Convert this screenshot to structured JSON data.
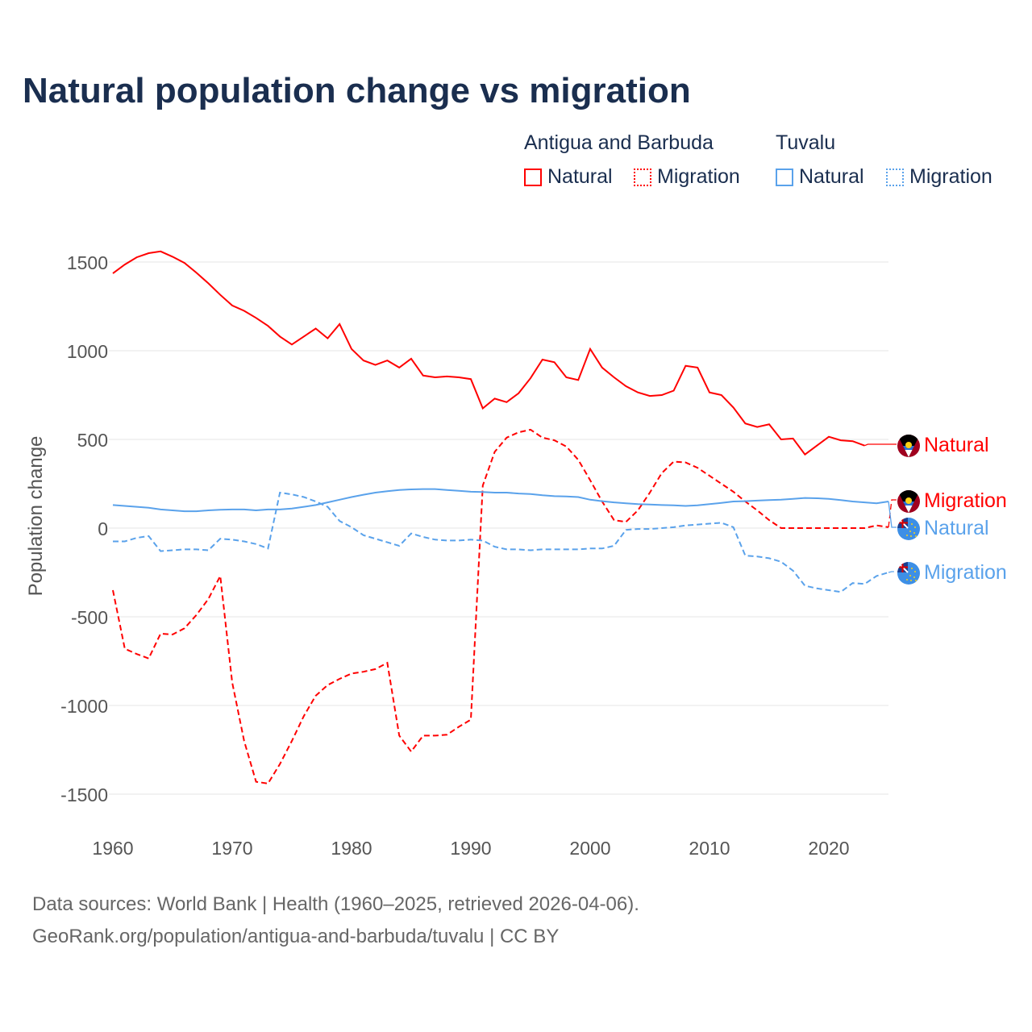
{
  "chart_data": {
    "type": "line",
    "title": "Natural population change vs migration",
    "xlabel": "",
    "ylabel": "Population change",
    "xlim": [
      1960,
      2025
    ],
    "ylim": [
      -1500,
      1500
    ],
    "yticks": [
      1500,
      1000,
      500,
      0,
      -500,
      -1000,
      -1500
    ],
    "ytick_labels": [
      "1500",
      "1000",
      "500",
      "0",
      "-500",
      "-1000",
      "-1500"
    ],
    "xticks": [
      1960,
      1970,
      1980,
      1990,
      2000,
      2010,
      2020
    ],
    "xtick_labels": [
      "1960",
      "1970",
      "1980",
      "1990",
      "2000",
      "2010",
      "2020"
    ],
    "grid": true,
    "legend_groups": [
      {
        "name": "Antigua and Barbuda",
        "items": [
          "Natural",
          "Migration"
        ]
      },
      {
        "name": "Tuvalu",
        "items": [
          "Natural",
          "Migration"
        ]
      }
    ],
    "x_start": 1960,
    "series": [
      {
        "name": "Natural",
        "country": "Antigua and Barbuda",
        "color": "#ff0000",
        "dash": false,
        "end_label": "Natural",
        "flag": "antigua-flag-icon",
        "values": [
          1436,
          1486,
          1527,
          1550,
          1560,
          1530,
          1495,
          1440,
          1380,
          1315,
          1255,
          1225,
          1185,
          1140,
          1080,
          1035,
          1080,
          1125,
          1070,
          1150,
          1010,
          945,
          920,
          945,
          905,
          955,
          860,
          850,
          855,
          850,
          840,
          675,
          730,
          710,
          760,
          845,
          950,
          935,
          850,
          835,
          1010,
          905,
          850,
          800,
          765,
          745,
          750,
          775,
          915,
          905,
          765,
          750,
          680,
          590,
          570,
          585,
          500,
          505,
          415,
          465,
          515,
          495,
          490,
          465,
          null,
          null
        ]
      },
      {
        "name": "Migration",
        "country": "Antigua and Barbuda",
        "color": "#ff0000",
        "dash": true,
        "end_label": "Migration",
        "flag": "antigua-flag-icon",
        "values": [
          -350,
          -680,
          -710,
          -735,
          -595,
          -600,
          -565,
          -490,
          -400,
          -270,
          -870,
          -1200,
          -1430,
          -1440,
          -1330,
          -1200,
          -1060,
          -945,
          -885,
          -850,
          -820,
          -810,
          -795,
          -760,
          -1170,
          -1260,
          -1170,
          -1170,
          -1165,
          -1120,
          -1080,
          240,
          430,
          510,
          540,
          555,
          510,
          495,
          460,
          385,
          270,
          150,
          45,
          35,
          100,
          200,
          310,
          375,
          370,
          340,
          295,
          250,
          205,
          150,
          100,
          45,
          0,
          0,
          0,
          0,
          0,
          0,
          0,
          0,
          15,
          5
        ]
      },
      {
        "name": "Natural",
        "country": "Tuvalu",
        "color": "#5aa2eb",
        "dash": false,
        "end_label": "Natural",
        "flag": "tuvalu-flag-icon",
        "values": [
          130,
          125,
          120,
          115,
          105,
          100,
          95,
          95,
          100,
          103,
          105,
          105,
          100,
          105,
          105,
          110,
          120,
          130,
          145,
          160,
          175,
          188,
          200,
          208,
          215,
          218,
          220,
          220,
          215,
          210,
          205,
          203,
          200,
          200,
          195,
          192,
          185,
          180,
          178,
          175,
          160,
          152,
          145,
          140,
          135,
          133,
          130,
          128,
          125,
          128,
          135,
          142,
          150,
          152,
          155,
          158,
          160,
          165,
          170,
          168,
          165,
          158,
          150,
          145,
          140,
          150
        ]
      },
      {
        "name": "Migration",
        "country": "Tuvalu",
        "color": "#5aa2eb",
        "dash": true,
        "end_label": "Migration",
        "flag": "tuvalu-flag-icon",
        "values": [
          -75,
          -75,
          -55,
          -45,
          -130,
          -125,
          -120,
          -120,
          -125,
          -60,
          -65,
          -75,
          -90,
          -115,
          200,
          190,
          175,
          150,
          120,
          40,
          5,
          -40,
          -60,
          -80,
          -100,
          -30,
          -50,
          -65,
          -70,
          -70,
          -65,
          -70,
          -105,
          -120,
          -120,
          -125,
          -120,
          -120,
          -120,
          -120,
          -115,
          -115,
          -100,
          -10,
          -5,
          -5,
          0,
          5,
          15,
          20,
          25,
          30,
          5,
          -155,
          -160,
          -170,
          -190,
          -240,
          -325,
          -340,
          -350,
          -360,
          -310,
          -315,
          -270,
          -250
        ]
      }
    ]
  },
  "footer": {
    "line1": "Data sources: World Bank | Health (1960–2025, retrieved 2026-04-06).",
    "line2": "GeoRank.org/population/antigua-and-barbuda/tuvalu | CC BY"
  }
}
